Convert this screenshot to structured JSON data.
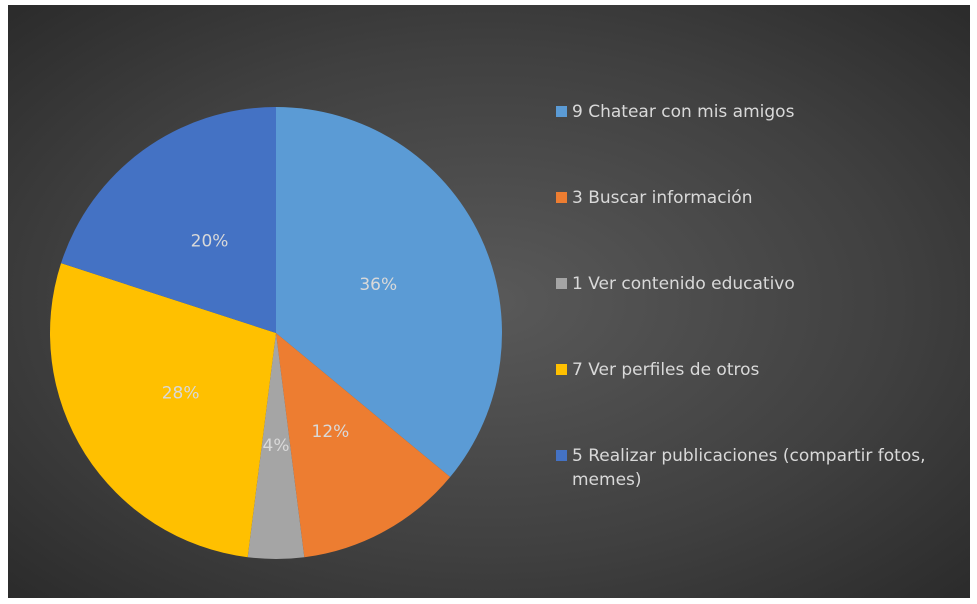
{
  "chart_data": {
    "type": "pie",
    "categories": [
      "9 Chatear con mis amigos",
      "3 Buscar información",
      "1 Ver contenido educativo",
      "7 Ver perfiles de otros",
      "5 Realizar publicaciones (compartir fotos, memes)"
    ],
    "values": [
      36,
      12,
      4,
      28,
      20
    ],
    "value_labels": [
      "36%",
      "12%",
      "4%",
      "28%",
      "20%"
    ],
    "colors": [
      "#5b9bd5",
      "#ed7d31",
      "#a5a5a5",
      "#ffc000",
      "#4472c4"
    ],
    "legend": "right"
  }
}
